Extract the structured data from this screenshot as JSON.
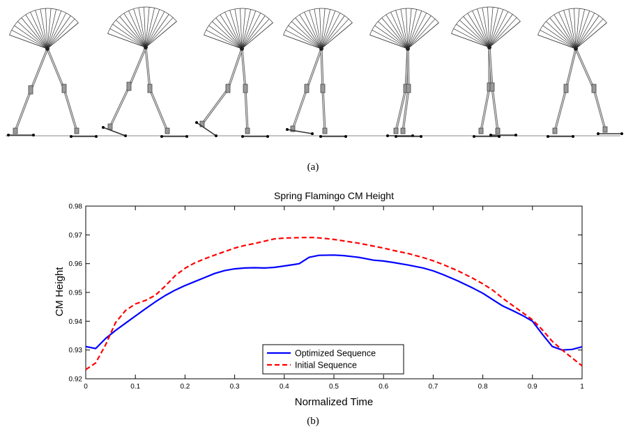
{
  "figure_a": {
    "caption": "(a)",
    "figures": 7
  },
  "figure_b": {
    "caption": "(b)"
  },
  "chart_data": {
    "type": "line",
    "title": "Spring Flamingo CM Height",
    "xlabel": "Normalized Time",
    "ylabel": "CM Height",
    "xlim": [
      0,
      1
    ],
    "ylim": [
      0.92,
      0.98
    ],
    "xticks": [
      "0",
      "0.1",
      "0.2",
      "0.3",
      "0.4",
      "0.5",
      "0.6",
      "0.7",
      "0.8",
      "0.9",
      "1"
    ],
    "yticks": [
      "0.92",
      "0.93",
      "0.94",
      "0.95",
      "0.96",
      "0.97",
      "0.98"
    ],
    "grid": false,
    "legend_position": "bottom-center",
    "series": [
      {
        "name": "Optimized Sequence",
        "color": "#0000ff",
        "style": "solid",
        "x": [
          0,
          0.02,
          0.04,
          0.06,
          0.08,
          0.1,
          0.12,
          0.14,
          0.16,
          0.18,
          0.2,
          0.22,
          0.24,
          0.26,
          0.28,
          0.3,
          0.32,
          0.34,
          0.36,
          0.38,
          0.4,
          0.42,
          0.43,
          0.45,
          0.47,
          0.5,
          0.52,
          0.55,
          0.58,
          0.6,
          0.62,
          0.65,
          0.68,
          0.7,
          0.72,
          0.75,
          0.78,
          0.8,
          0.82,
          0.84,
          0.86,
          0.88,
          0.9,
          0.92,
          0.94,
          0.96,
          0.98,
          1.0
        ],
        "y": [
          0.9312,
          0.9305,
          0.934,
          0.9368,
          0.9393,
          0.9418,
          0.9443,
          0.9467,
          0.9489,
          0.9508,
          0.9524,
          0.9538,
          0.9552,
          0.9566,
          0.9576,
          0.9582,
          0.9585,
          0.9586,
          0.9585,
          0.9587,
          0.9592,
          0.9597,
          0.96,
          0.9622,
          0.9629,
          0.963,
          0.9628,
          0.9622,
          0.9612,
          0.9609,
          0.9604,
          0.9595,
          0.9585,
          0.9575,
          0.9562,
          0.954,
          0.9515,
          0.9497,
          0.9475,
          0.9453,
          0.9437,
          0.942,
          0.94,
          0.9355,
          0.9312,
          0.93,
          0.9302,
          0.9311
        ]
      },
      {
        "name": "Initial Sequence",
        "color": "#ff0000",
        "style": "dashed",
        "x": [
          0,
          0.02,
          0.04,
          0.06,
          0.08,
          0.1,
          0.12,
          0.14,
          0.16,
          0.18,
          0.2,
          0.22,
          0.24,
          0.26,
          0.28,
          0.3,
          0.32,
          0.34,
          0.36,
          0.38,
          0.4,
          0.42,
          0.44,
          0.46,
          0.48,
          0.5,
          0.52,
          0.55,
          0.58,
          0.6,
          0.62,
          0.65,
          0.68,
          0.7,
          0.72,
          0.75,
          0.78,
          0.8,
          0.82,
          0.84,
          0.86,
          0.88,
          0.9,
          0.92,
          0.94,
          0.96,
          0.98,
          1.0
        ],
        "y": [
          0.9232,
          0.9255,
          0.9318,
          0.9395,
          0.9437,
          0.946,
          0.9472,
          0.949,
          0.9522,
          0.9558,
          0.9584,
          0.9603,
          0.9617,
          0.963,
          0.9642,
          0.9654,
          0.9663,
          0.967,
          0.9678,
          0.9686,
          0.9689,
          0.969,
          0.9691,
          0.9691,
          0.9688,
          0.9684,
          0.9679,
          0.9671,
          0.9661,
          0.9654,
          0.9646,
          0.9635,
          0.9621,
          0.961,
          0.9597,
          0.9575,
          0.9549,
          0.953,
          0.9508,
          0.948,
          0.9455,
          0.943,
          0.9405,
          0.937,
          0.933,
          0.93,
          0.9272,
          0.9245
        ]
      }
    ]
  }
}
